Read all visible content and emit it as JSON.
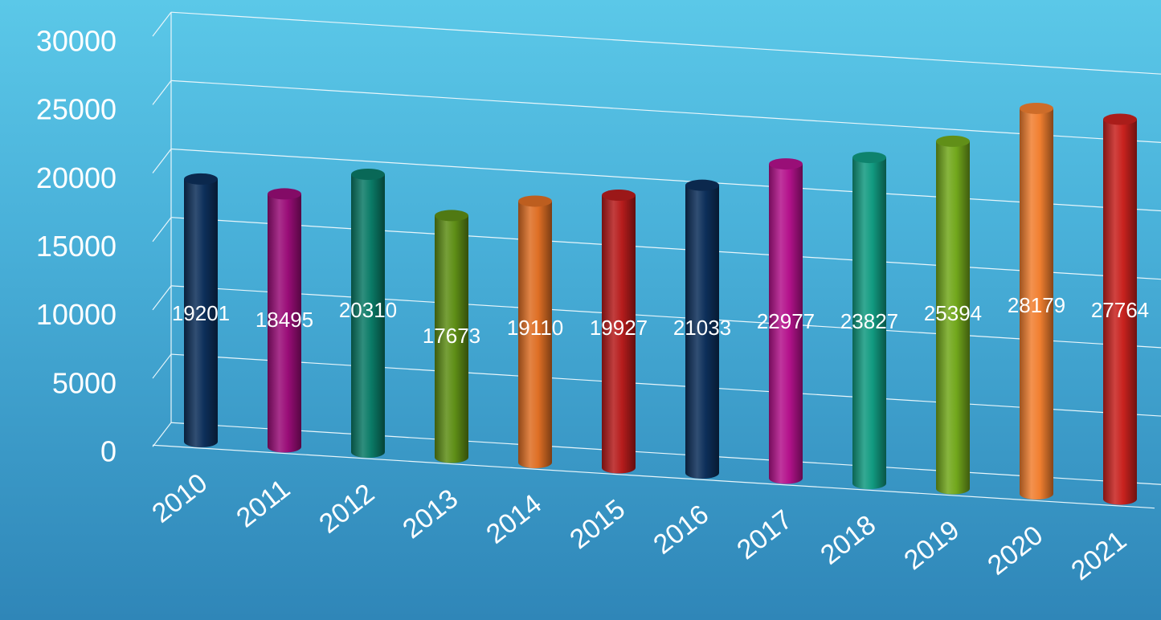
{
  "chart_data": {
    "type": "bar",
    "title": "",
    "xlabel": "",
    "ylabel": "",
    "categories": [
      "2010",
      "2011",
      "2012",
      "2013",
      "2014",
      "2015",
      "2016",
      "2017",
      "2018",
      "2019",
      "2020",
      "2021"
    ],
    "values": [
      19201,
      18495,
      20310,
      17673,
      19110,
      19927,
      21033,
      22977,
      23827,
      25394,
      28179,
      27764
    ],
    "data_labels": [
      "19201",
      "18495",
      "20310",
      "17673",
      "19110",
      "19927",
      "21033",
      "22977",
      "23827",
      "25394",
      "28179",
      "27764"
    ],
    "y_ticks": [
      "0",
      "5000",
      "10000",
      "15000",
      "20000",
      "25000",
      "30000"
    ],
    "ylim": [
      0,
      30000
    ],
    "grid": true,
    "legend": "none",
    "bar_colors": [
      "#0d2f5a",
      "#9a0d78",
      "#0a7a66",
      "#5e8e16",
      "#de6e24",
      "#b61c1c",
      "#0d2f5a",
      "#b4128c",
      "#119a80",
      "#72a81c",
      "#f17f30",
      "#c8221e"
    ]
  }
}
